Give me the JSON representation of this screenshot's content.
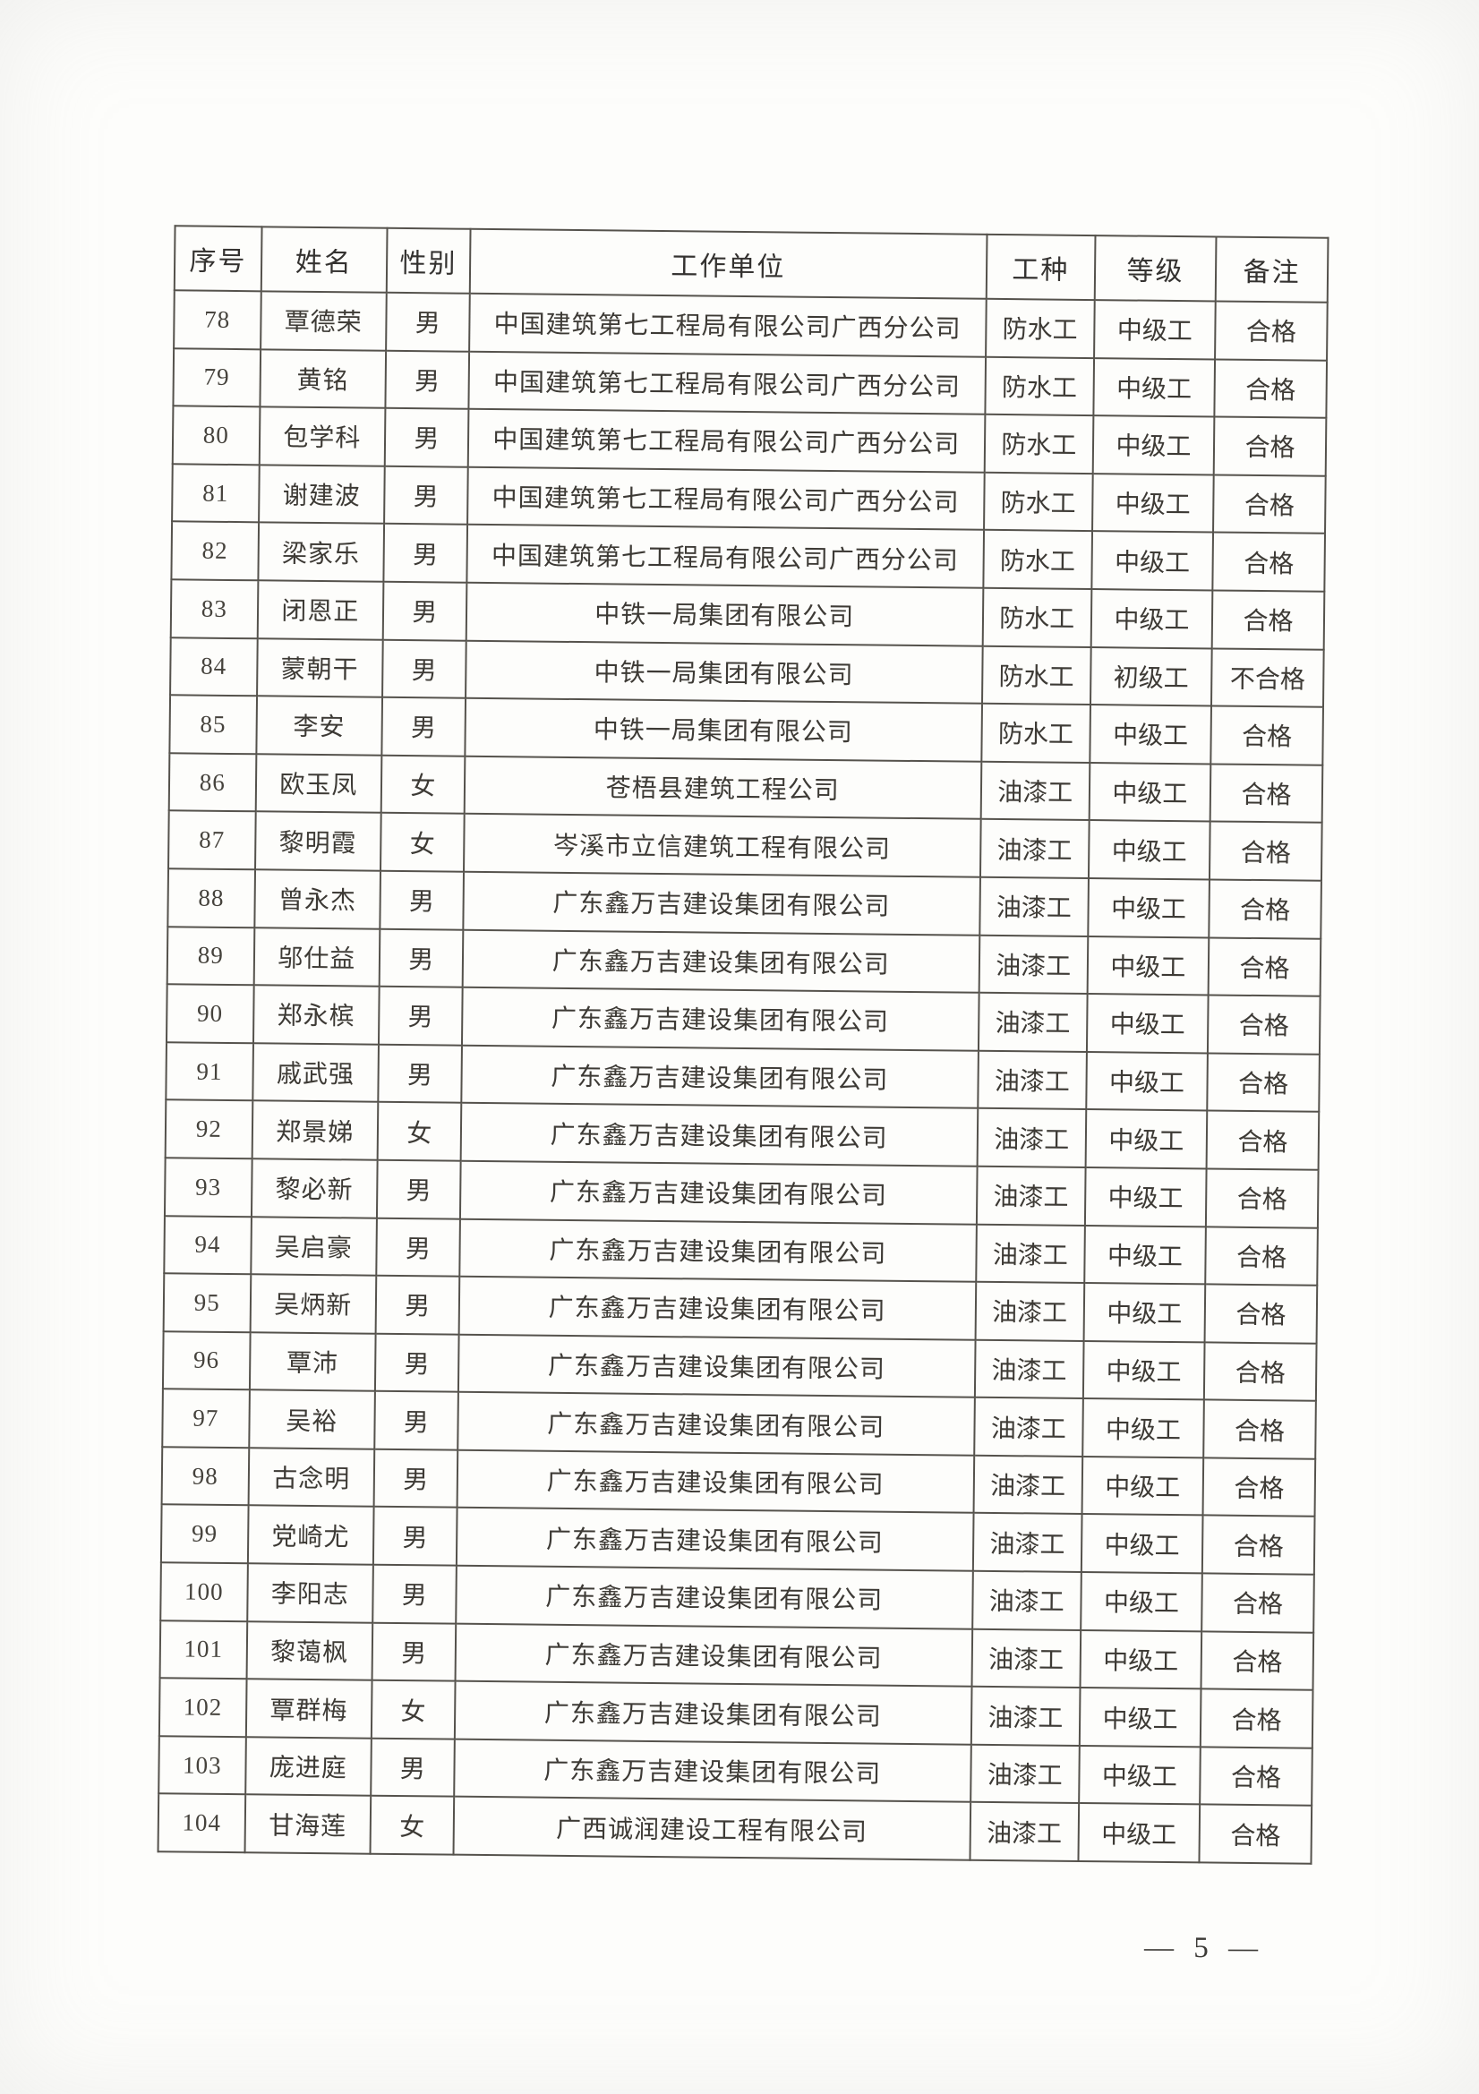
{
  "page_number": "— 5 —",
  "table": {
    "headers": [
      "序号",
      "姓名",
      "性别",
      "工作单位",
      "工种",
      "等级",
      "备注"
    ],
    "rows": [
      [
        "78",
        "覃德荣",
        "男",
        "中国建筑第七工程局有限公司广西分公司",
        "防水工",
        "中级工",
        "合格"
      ],
      [
        "79",
        "黄铭",
        "男",
        "中国建筑第七工程局有限公司广西分公司",
        "防水工",
        "中级工",
        "合格"
      ],
      [
        "80",
        "包学科",
        "男",
        "中国建筑第七工程局有限公司广西分公司",
        "防水工",
        "中级工",
        "合格"
      ],
      [
        "81",
        "谢建波",
        "男",
        "中国建筑第七工程局有限公司广西分公司",
        "防水工",
        "中级工",
        "合格"
      ],
      [
        "82",
        "梁家乐",
        "男",
        "中国建筑第七工程局有限公司广西分公司",
        "防水工",
        "中级工",
        "合格"
      ],
      [
        "83",
        "闭恩正",
        "男",
        "中铁一局集团有限公司",
        "防水工",
        "中级工",
        "合格"
      ],
      [
        "84",
        "蒙朝干",
        "男",
        "中铁一局集团有限公司",
        "防水工",
        "初级工",
        "不合格"
      ],
      [
        "85",
        "李安",
        "男",
        "中铁一局集团有限公司",
        "防水工",
        "中级工",
        "合格"
      ],
      [
        "86",
        "欧玉凤",
        "女",
        "苍梧县建筑工程公司",
        "油漆工",
        "中级工",
        "合格"
      ],
      [
        "87",
        "黎明霞",
        "女",
        "岑溪市立信建筑工程有限公司",
        "油漆工",
        "中级工",
        "合格"
      ],
      [
        "88",
        "曾永杰",
        "男",
        "广东鑫万吉建设集团有限公司",
        "油漆工",
        "中级工",
        "合格"
      ],
      [
        "89",
        "邬仕益",
        "男",
        "广东鑫万吉建设集团有限公司",
        "油漆工",
        "中级工",
        "合格"
      ],
      [
        "90",
        "郑永槟",
        "男",
        "广东鑫万吉建设集团有限公司",
        "油漆工",
        "中级工",
        "合格"
      ],
      [
        "91",
        "戚武强",
        "男",
        "广东鑫万吉建设集团有限公司",
        "油漆工",
        "中级工",
        "合格"
      ],
      [
        "92",
        "郑景娣",
        "女",
        "广东鑫万吉建设集团有限公司",
        "油漆工",
        "中级工",
        "合格"
      ],
      [
        "93",
        "黎必新",
        "男",
        "广东鑫万吉建设集团有限公司",
        "油漆工",
        "中级工",
        "合格"
      ],
      [
        "94",
        "吴启豪",
        "男",
        "广东鑫万吉建设集团有限公司",
        "油漆工",
        "中级工",
        "合格"
      ],
      [
        "95",
        "吴炳新",
        "男",
        "广东鑫万吉建设集团有限公司",
        "油漆工",
        "中级工",
        "合格"
      ],
      [
        "96",
        "覃沛",
        "男",
        "广东鑫万吉建设集团有限公司",
        "油漆工",
        "中级工",
        "合格"
      ],
      [
        "97",
        "吴裕",
        "男",
        "广东鑫万吉建设集团有限公司",
        "油漆工",
        "中级工",
        "合格"
      ],
      [
        "98",
        "古念明",
        "男",
        "广东鑫万吉建设集团有限公司",
        "油漆工",
        "中级工",
        "合格"
      ],
      [
        "99",
        "党崎尤",
        "男",
        "广东鑫万吉建设集团有限公司",
        "油漆工",
        "中级工",
        "合格"
      ],
      [
        "100",
        "李阳志",
        "男",
        "广东鑫万吉建设集团有限公司",
        "油漆工",
        "中级工",
        "合格"
      ],
      [
        "101",
        "黎蔼枫",
        "男",
        "广东鑫万吉建设集团有限公司",
        "油漆工",
        "中级工",
        "合格"
      ],
      [
        "102",
        "覃群梅",
        "女",
        "广东鑫万吉建设集团有限公司",
        "油漆工",
        "中级工",
        "合格"
      ],
      [
        "103",
        "庞进庭",
        "男",
        "广东鑫万吉建设集团有限公司",
        "油漆工",
        "中级工",
        "合格"
      ],
      [
        "104",
        "甘海莲",
        "女",
        "广西诚润建设工程有限公司",
        "油漆工",
        "中级工",
        "合格"
      ]
    ]
  }
}
